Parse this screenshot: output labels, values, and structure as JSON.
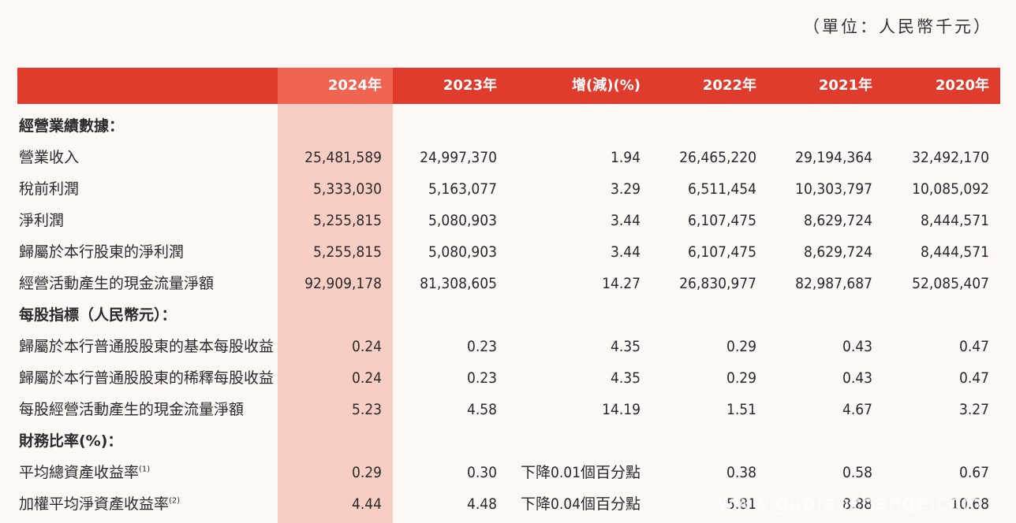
{
  "unit_note": "（單位：人民幣千元）",
  "headers": [
    "2024年",
    "2023年",
    "增(減)(%)",
    "2022年",
    "2021年",
    "2020年"
  ],
  "rows": [
    {
      "type": "section",
      "label": "經營業績數據："
    },
    {
      "type": "data",
      "label": "營業收入",
      "values": [
        "25,481,589",
        "24,997,370",
        "1.94",
        "26,465,220",
        "29,194,364",
        "32,492,170"
      ]
    },
    {
      "type": "data",
      "label": "稅前利潤",
      "values": [
        "5,333,030",
        "5,163,077",
        "3.29",
        "6,511,454",
        "10,303,797",
        "10,085,092"
      ]
    },
    {
      "type": "data",
      "label": "淨利潤",
      "values": [
        "5,255,815",
        "5,080,903",
        "3.44",
        "6,107,475",
        "8,629,724",
        "8,444,571"
      ]
    },
    {
      "type": "data",
      "label": "歸屬於本行股東的淨利潤",
      "values": [
        "5,255,815",
        "5,080,903",
        "3.44",
        "6,107,475",
        "8,629,724",
        "8,444,571"
      ]
    },
    {
      "type": "data",
      "label": "經營活動產生的現金流量淨額",
      "values": [
        "92,909,178",
        "81,308,605",
        "14.27",
        "26,830,977",
        "82,987,687",
        "52,085,407"
      ]
    },
    {
      "type": "section",
      "label": "每股指標（人民幣元）："
    },
    {
      "type": "data",
      "label": "歸屬於本行普通股股東的基本每股收益",
      "values": [
        "0.24",
        "0.23",
        "4.35",
        "0.29",
        "0.43",
        "0.47"
      ]
    },
    {
      "type": "data",
      "label": "歸屬於本行普通股股東的稀釋每股收益",
      "values": [
        "0.24",
        "0.23",
        "4.35",
        "0.29",
        "0.43",
        "0.47"
      ]
    },
    {
      "type": "data",
      "label": "每股經營活動產生的現金流量淨額",
      "values": [
        "5.23",
        "4.58",
        "14.19",
        "1.51",
        "4.67",
        "3.27"
      ]
    },
    {
      "type": "section",
      "label": "財務比率(%)："
    },
    {
      "type": "data",
      "label": "平均總資產收益率",
      "note": "(1)",
      "values": [
        "0.29",
        "0.30",
        "下降0.01個百分點",
        "0.38",
        "0.58",
        "0.67"
      ]
    },
    {
      "type": "data",
      "label": "加權平均淨資產收益率",
      "note": "(2)",
      "values": [
        "4.44",
        "4.48",
        "下降0.04個百分點",
        "5.81",
        "8.88",
        "10.68"
      ]
    }
  ],
  "watermark": "www.gupiaozhange.com"
}
